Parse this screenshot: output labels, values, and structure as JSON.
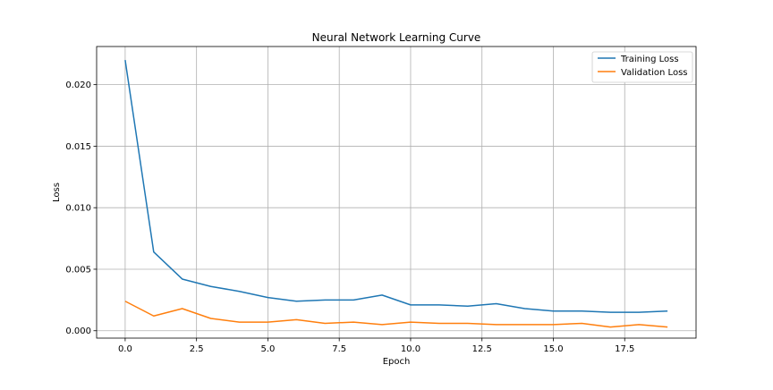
{
  "chart_data": {
    "type": "line",
    "title": "Neural Network Learning Curve",
    "xlabel": "Epoch",
    "ylabel": "Loss",
    "xlim": [
      -1.0,
      20.0
    ],
    "ylim": [
      -0.0006,
      0.0231
    ],
    "x_ticks": [
      0.0,
      2.5,
      5.0,
      7.5,
      10.0,
      12.5,
      15.0,
      17.5
    ],
    "x_tick_labels": [
      "0.0",
      "2.5",
      "5.0",
      "7.5",
      "10.0",
      "12.5",
      "15.0",
      "17.5"
    ],
    "y_ticks": [
      0.0,
      0.005,
      0.01,
      0.015,
      0.02
    ],
    "y_tick_labels": [
      "0.000",
      "0.005",
      "0.010",
      "0.015",
      "0.020"
    ],
    "grid": true,
    "legend_position": "top-right",
    "x": [
      0,
      1,
      2,
      3,
      4,
      5,
      6,
      7,
      8,
      9,
      10,
      11,
      12,
      13,
      14,
      15,
      16,
      17,
      18,
      19
    ],
    "series": [
      {
        "name": "Training Loss",
        "color": "#1f77b4",
        "values": [
          0.022,
          0.0064,
          0.0042,
          0.0036,
          0.0032,
          0.0027,
          0.0024,
          0.0025,
          0.0025,
          0.0029,
          0.0021,
          0.0021,
          0.002,
          0.0022,
          0.0018,
          0.0016,
          0.0016,
          0.0015,
          0.0015,
          0.0016
        ]
      },
      {
        "name": "Validation Loss",
        "color": "#ff7f0e",
        "values": [
          0.0024,
          0.0012,
          0.0018,
          0.001,
          0.0007,
          0.0007,
          0.0009,
          0.0006,
          0.0007,
          0.0005,
          0.0007,
          0.0006,
          0.0006,
          0.0005,
          0.0005,
          0.0005,
          0.0006,
          0.0003,
          0.0005,
          0.0003
        ]
      }
    ]
  }
}
